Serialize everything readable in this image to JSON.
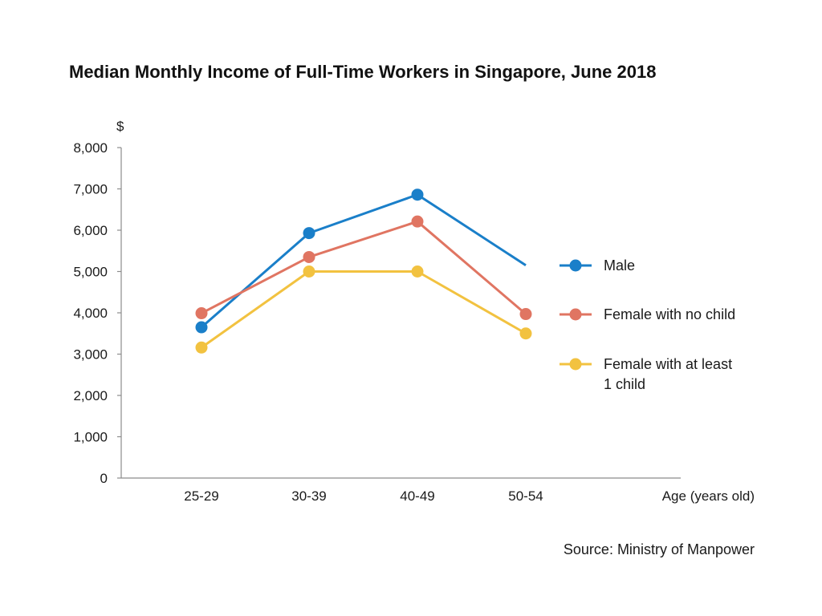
{
  "chart_data": {
    "type": "line",
    "title": "Median Monthly Income of Full-Time Workers in Singapore, June 2018",
    "ylabel": "$",
    "xlabel": "Age (years old)",
    "categories": [
      "25-29",
      "30-39",
      "40-49",
      "50-54"
    ],
    "ylim": [
      0,
      8000
    ],
    "yticks": [
      0,
      1000,
      2000,
      3000,
      4000,
      5000,
      6000,
      7000,
      8000
    ],
    "ytick_labels": [
      "0",
      "1,000",
      "2,000",
      "3,000",
      "4,000",
      "5,000",
      "6,000",
      "7,000",
      "8,000"
    ],
    "grid": false,
    "legend_position": "right",
    "series": [
      {
        "name": "Male",
        "values": [
          3650,
          5930,
          6860,
          5150
        ],
        "color": "#1a7fc9",
        "marker_last": false
      },
      {
        "name": "Female with no child",
        "values": [
          3990,
          5350,
          6210,
          3970
        ],
        "color": "#e07562",
        "marker_last": true
      },
      {
        "name": "Female with at least 1 child",
        "values": [
          3160,
          5000,
          5000,
          3500
        ],
        "color": "#f2c240",
        "marker_last": true
      }
    ],
    "source": "Source: Ministry of Manpower"
  },
  "legend": {
    "items": [
      {
        "lines": [
          "Male"
        ]
      },
      {
        "lines": [
          "Female with no child"
        ]
      },
      {
        "lines": [
          "Female with at least",
          "1 child"
        ]
      }
    ]
  }
}
